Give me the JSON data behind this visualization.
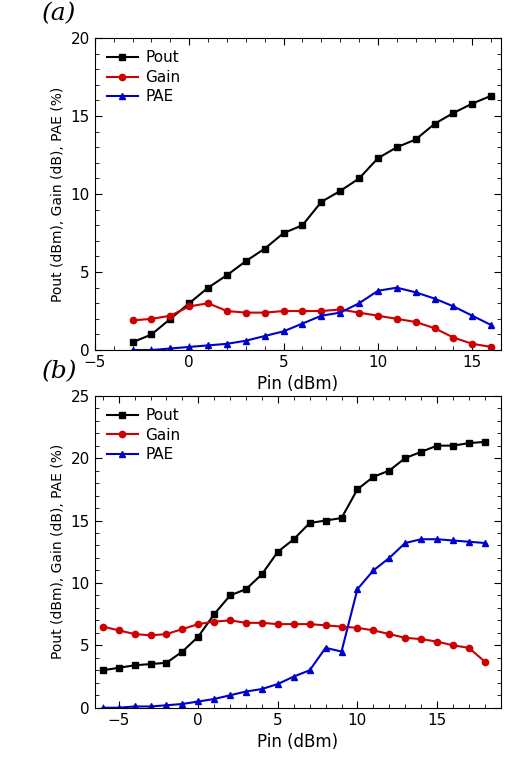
{
  "panel_a": {
    "label": "(a)",
    "pout_x": [
      -3,
      -2,
      -1,
      0,
      1,
      2,
      3,
      4,
      5,
      6,
      7,
      8,
      9,
      10,
      11,
      12,
      13,
      14,
      15,
      16
    ],
    "pout_y": [
      0.5,
      1.0,
      2.0,
      3.0,
      4.0,
      4.8,
      5.7,
      6.5,
      7.5,
      8.0,
      9.5,
      10.2,
      11.0,
      12.3,
      13.0,
      13.5,
      14.5,
      15.2,
      15.8,
      16.3
    ],
    "gain_x": [
      -3,
      -2,
      -1,
      0,
      1,
      2,
      3,
      4,
      5,
      6,
      7,
      8,
      9,
      10,
      11,
      12,
      13,
      14,
      15,
      16
    ],
    "gain_y": [
      1.9,
      2.0,
      2.2,
      2.8,
      3.0,
      2.5,
      2.4,
      2.4,
      2.5,
      2.5,
      2.5,
      2.6,
      2.4,
      2.2,
      2.0,
      1.8,
      1.4,
      0.8,
      0.4,
      0.2
    ],
    "pae_x": [
      -3,
      -2,
      -1,
      0,
      1,
      2,
      3,
      4,
      5,
      6,
      7,
      8,
      9,
      10,
      11,
      12,
      13,
      14,
      15,
      16
    ],
    "pae_y": [
      0.0,
      0.0,
      0.1,
      0.2,
      0.3,
      0.4,
      0.6,
      0.9,
      1.2,
      1.7,
      2.2,
      2.4,
      3.0,
      3.8,
      4.0,
      3.7,
      3.3,
      2.8,
      2.2,
      1.6
    ],
    "xlim": [
      -5,
      16.5
    ],
    "ylim": [
      0,
      20
    ],
    "xticks": [
      -5,
      0,
      5,
      10,
      15
    ],
    "yticks": [
      0,
      5,
      10,
      15,
      20
    ],
    "xlabel": "Pin (dBm)",
    "ylabel": "Pout (dBm), Gain (dB), PAE (%)"
  },
  "panel_b": {
    "label": "(b)",
    "pout_x": [
      -6,
      -5,
      -4,
      -3,
      -2,
      -1,
      0,
      1,
      2,
      3,
      4,
      5,
      6,
      7,
      8,
      9,
      10,
      11,
      12,
      13,
      14,
      15,
      16,
      17,
      18
    ],
    "pout_y": [
      3.0,
      3.2,
      3.4,
      3.5,
      3.6,
      4.5,
      5.7,
      7.5,
      9.0,
      9.5,
      10.7,
      12.5,
      13.5,
      14.8,
      15.0,
      15.2,
      17.5,
      18.5,
      19.0,
      20.0,
      20.5,
      21.0,
      21.0,
      21.2,
      21.3
    ],
    "gain_x": [
      -6,
      -5,
      -4,
      -3,
      -2,
      -1,
      0,
      1,
      2,
      3,
      4,
      5,
      6,
      7,
      8,
      9,
      10,
      11,
      12,
      13,
      14,
      15,
      16,
      17,
      18
    ],
    "gain_y": [
      6.5,
      6.2,
      5.9,
      5.8,
      5.9,
      6.3,
      6.7,
      6.9,
      7.0,
      6.8,
      6.8,
      6.7,
      6.7,
      6.7,
      6.6,
      6.5,
      6.4,
      6.2,
      5.9,
      5.6,
      5.5,
      5.3,
      5.0,
      4.8,
      3.7
    ],
    "pae_x": [
      -6,
      -5,
      -4,
      -3,
      -2,
      -1,
      0,
      1,
      2,
      3,
      4,
      5,
      6,
      7,
      8,
      9,
      10,
      11,
      12,
      13,
      14,
      15,
      16,
      17,
      18
    ],
    "pae_y": [
      0.0,
      0.0,
      0.1,
      0.1,
      0.2,
      0.3,
      0.5,
      0.7,
      1.0,
      1.3,
      1.5,
      1.9,
      2.5,
      3.0,
      4.8,
      4.5,
      9.5,
      11.0,
      12.0,
      13.2,
      13.5,
      13.5,
      13.4,
      13.3,
      13.2
    ],
    "xlim": [
      -6.5,
      19
    ],
    "ylim": [
      0,
      25
    ],
    "xticks": [
      -5,
      0,
      5,
      10,
      15
    ],
    "yticks": [
      0,
      5,
      10,
      15,
      20,
      25
    ],
    "xlabel": "Pin (dBm)",
    "ylabel": "Pout (dBm), Gain (dB), PAE (%)"
  },
  "colors": {
    "pout": "#000000",
    "gain": "#cc0000",
    "pae": "#0000cc"
  }
}
